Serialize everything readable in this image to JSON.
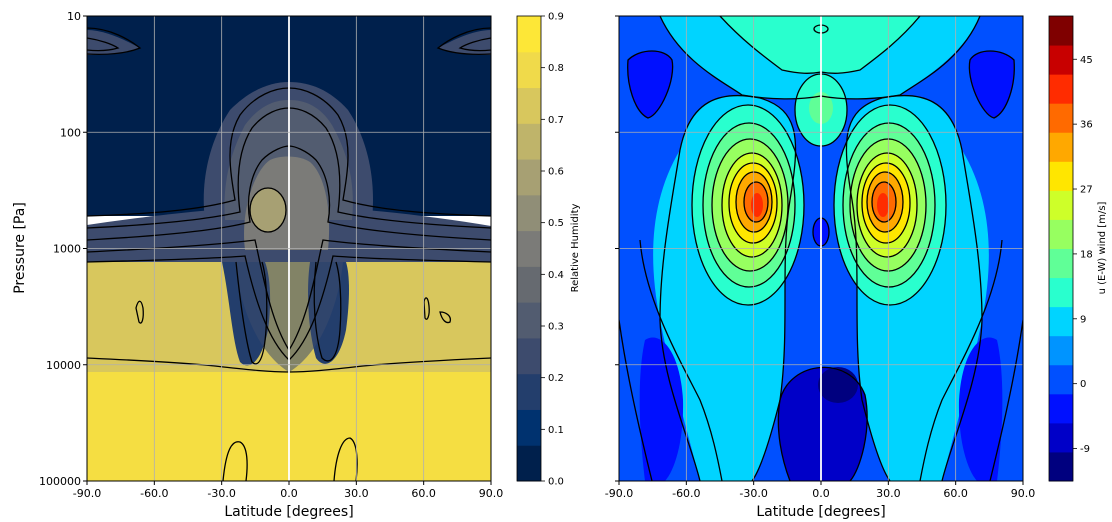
{
  "colors": {
    "rh_ramp": [
      "#00204c",
      "#00326f",
      "#233e6c",
      "#3d4b6d",
      "#525c70",
      "#666a70",
      "#7b7b78",
      "#908e77",
      "#a7a073",
      "#bfb46a",
      "#d8c75d",
      "#f0da4a",
      "#fde737"
    ],
    "jet_ramp": [
      "#00007f",
      "#0000c8",
      "#0010ff",
      "#0050ff",
      "#0094ff",
      "#00d4ff",
      "#29ffce",
      "#60ff97",
      "#97ff60",
      "#ceff29",
      "#ffe600",
      "#ffa800",
      "#ff6a00",
      "#ff2c00",
      "#c80000",
      "#7f0000"
    ],
    "grid": "#b0b0b0",
    "contour": "#000000"
  },
  "chart_data": [
    {
      "type": "heatmap",
      "name": "relative-humidity-panel",
      "title": "",
      "xlabel": "Latitude [degrees]",
      "ylabel": "Pressure [Pa]",
      "x_ticks": [
        "-90.0",
        "-60.0",
        "-30.0",
        "0.0",
        "30.0",
        "60.0",
        "90.0"
      ],
      "y_ticks": [
        "10",
        "100",
        "1000",
        "10000",
        "100000"
      ],
      "xlim": [
        -90,
        90
      ],
      "ylim": [
        100000,
        10
      ],
      "y_scale": "log",
      "grid": true,
      "colorbar": {
        "label": "Relative Humidity",
        "ticks": [
          "0.0",
          "0.1",
          "0.2",
          "0.3",
          "0.4",
          "0.5",
          "0.6",
          "0.7",
          "0.8",
          "0.9"
        ],
        "range": [
          0,
          0.9
        ],
        "levels": 18
      }
    },
    {
      "type": "heatmap",
      "name": "zonal-wind-panel",
      "title": "",
      "xlabel": "Latitude [degrees]",
      "ylabel": "",
      "x_ticks": [
        "-90.0",
        "-60.0",
        "-30.0",
        "0.0",
        "30.0",
        "60.0",
        "90.0"
      ],
      "xlim": [
        -90,
        90
      ],
      "ylim": [
        100000,
        10
      ],
      "y_scale": "log",
      "grid": true,
      "colorbar": {
        "label": "u (E-W) wind [m/s]",
        "ticks": [
          "-9",
          "0",
          "9",
          "18",
          "27",
          "36",
          "45"
        ],
        "range": [
          -13.5,
          51
        ],
        "levels": 16
      }
    }
  ]
}
